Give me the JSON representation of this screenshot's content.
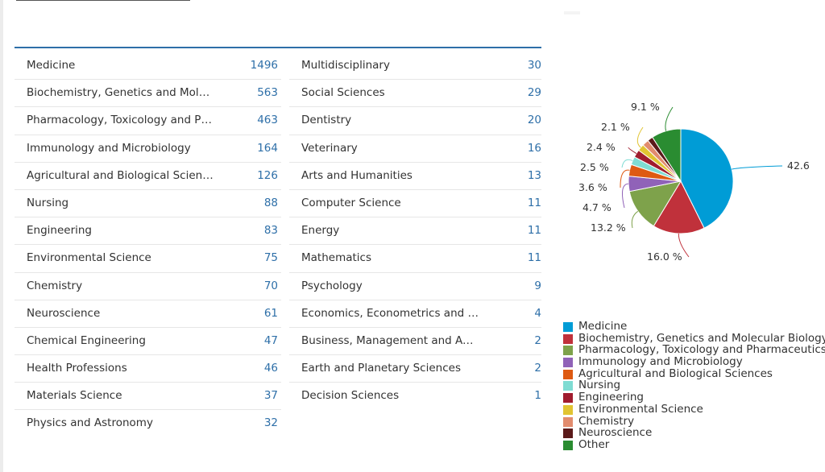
{
  "subject_table": {
    "left_column": [
      {
        "name": "Medicine",
        "count": "1496"
      },
      {
        "name": "Biochemistry, Genetics and Molec...",
        "count": "563"
      },
      {
        "name": "Pharmacology, Toxicology and Phar...",
        "count": "463"
      },
      {
        "name": "Immunology and Microbiology",
        "count": "164"
      },
      {
        "name": "Agricultural and Biological Sciences",
        "count": "126"
      },
      {
        "name": "Nursing",
        "count": "88"
      },
      {
        "name": "Engineering",
        "count": "83"
      },
      {
        "name": "Environmental Science",
        "count": "75"
      },
      {
        "name": "Chemistry",
        "count": "70"
      },
      {
        "name": "Neuroscience",
        "count": "61"
      },
      {
        "name": "Chemical Engineering",
        "count": "47"
      },
      {
        "name": "Health Professions",
        "count": "46"
      },
      {
        "name": "Materials Science",
        "count": "37"
      },
      {
        "name": "Physics and Astronomy",
        "count": "32"
      }
    ],
    "right_column": [
      {
        "name": "Multidisciplinary",
        "count": "30"
      },
      {
        "name": "Social Sciences",
        "count": "29"
      },
      {
        "name": "Dentistry",
        "count": "20"
      },
      {
        "name": "Veterinary",
        "count": "16"
      },
      {
        "name": "Arts and Humanities",
        "count": "13"
      },
      {
        "name": "Computer Science",
        "count": "11"
      },
      {
        "name": "Energy",
        "count": "11"
      },
      {
        "name": "Mathematics",
        "count": "11"
      },
      {
        "name": "Psychology",
        "count": "9"
      },
      {
        "name": "Economics, Econometrics and Fi...",
        "count": "4"
      },
      {
        "name": "Business, Management and Acco...",
        "count": "2"
      },
      {
        "name": "Earth and Planetary Sciences",
        "count": "2"
      },
      {
        "name": "Decision Sciences",
        "count": "1"
      }
    ]
  },
  "chart_data": {
    "type": "pie",
    "categories": [
      "Medicine",
      "Biochemistry, Genetics and Molecular Biology",
      "Pharmacology, Toxicology and Pharmaceutics",
      "Immunology and Microbiology",
      "Agricultural and Biological Sciences",
      "Nursing",
      "Engineering",
      "Environmental Science",
      "Chemistry",
      "Neuroscience",
      "Other"
    ],
    "values": [
      42.6,
      16.0,
      13.2,
      4.7,
      3.6,
      2.5,
      2.4,
      2.1,
      2.0,
      1.7,
      9.1
    ],
    "data_labels": [
      "42.6 %",
      "16.0 %",
      "13.2 %",
      "4.7 %",
      "3.6 %",
      "2.5 %",
      "2.4 %",
      "2.1 %",
      "",
      "",
      "9.1 %"
    ],
    "colors": [
      "#009cd6",
      "#c0313b",
      "#7ea24b",
      "#9062b8",
      "#de5a12",
      "#7fdcd3",
      "#a01c2e",
      "#e1c432",
      "#e28c6e",
      "#5b1a1a",
      "#2a8c31"
    ],
    "legend_position": "bottom"
  }
}
